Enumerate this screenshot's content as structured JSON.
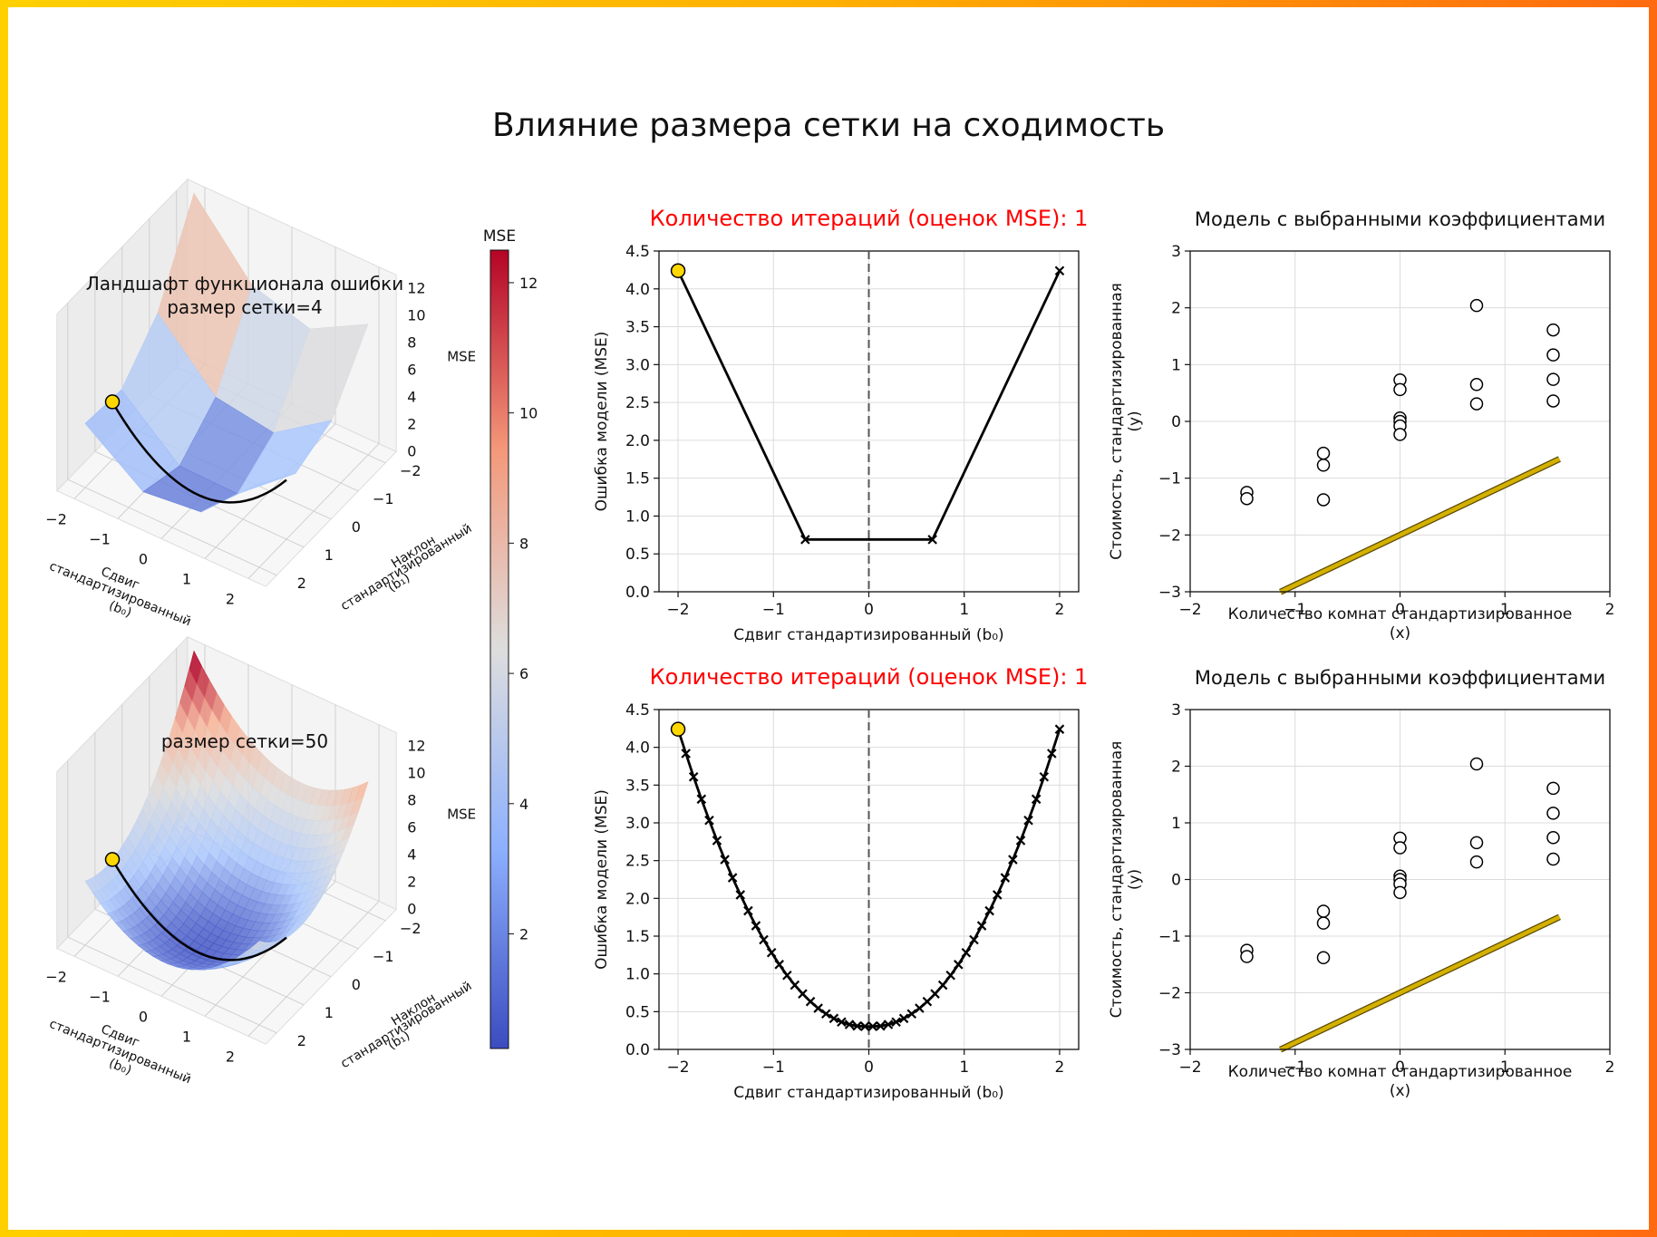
{
  "figure": {
    "title": "Влияние размера сетки на сходимость",
    "frame_colors": [
      "#ffd000",
      "#ffb000",
      "#ff6a10"
    ]
  },
  "colorbar": {
    "label": "MSE",
    "ticks": [
      2,
      4,
      6,
      8,
      10,
      12
    ],
    "range": [
      0.24,
      12.5
    ],
    "cmap": [
      "#3b4cc0",
      "#aac7fd",
      "#dddddd",
      "#f7b396",
      "#b40426"
    ]
  },
  "chart_data": [
    {
      "id": "surface_grid4",
      "type": "surface3d",
      "title": "Ландшафт функционала ошибки\nразмер сетки=4",
      "title_lines": [
        "Ландшафт функционала ошибки",
        "размер сетки=4"
      ],
      "grid_size": 4,
      "xlabel_lines": [
        "Сдвиг",
        "стандартизированный",
        "(b₀)"
      ],
      "ylabel_lines": [
        "Наклон",
        "стандартизированный",
        "(b₁)"
      ],
      "zlabel": "MSE",
      "xticks": [
        "−2",
        "−1",
        "0",
        "1",
        "2"
      ],
      "yticks": [
        "−2",
        "−1",
        "0",
        "1",
        "2"
      ],
      "zticks": [
        "0",
        "2",
        "4",
        "6",
        "8",
        "10",
        "12"
      ],
      "start_point": {
        "b0": -2,
        "b1": 1,
        "mse": 4.24
      },
      "start_color": "#ffd700"
    },
    {
      "id": "surface_grid50",
      "type": "surface3d",
      "title": "размер сетки=50",
      "title_lines": [
        "размер сетки=50"
      ],
      "grid_size": 50,
      "xlabel_lines": [
        "Сдвиг",
        "стандартизированный",
        "(b₀)"
      ],
      "ylabel_lines": [
        "Наклон",
        "стандартизированный",
        "(b₁)"
      ],
      "zlabel": "MSE",
      "xticks": [
        "−2",
        "−1",
        "0",
        "1",
        "2"
      ],
      "yticks": [
        "−2",
        "−1",
        "0",
        "1",
        "2"
      ],
      "zticks": [
        "0",
        "2",
        "4",
        "6",
        "8",
        "10",
        "12"
      ],
      "start_point": {
        "b0": -2,
        "b1": 1,
        "mse": 4.24
      },
      "start_color": "#ffd700"
    },
    {
      "id": "mse_grid4",
      "type": "line",
      "title": "Количество итераций (оценок MSE): 1",
      "title_color": "#ff0000",
      "xlabel": "Сдвиг стандартизированный (b₀)",
      "ylabel": "Ошибка модели (MSE)",
      "xlim": [
        -2.2,
        2.2
      ],
      "ylim": [
        0,
        4.5
      ],
      "xticks": [
        -2,
        -1,
        0,
        1,
        2
      ],
      "xtick_labels": [
        "−2",
        "−1",
        "0",
        "1",
        "2"
      ],
      "yticks": [
        0.0,
        0.5,
        1.0,
        1.5,
        2.0,
        2.5,
        3.0,
        3.5,
        4.0,
        4.5
      ],
      "ytick_labels": [
        "0.0",
        "0.5",
        "1.0",
        "1.5",
        "2.0",
        "2.5",
        "3.0",
        "3.5",
        "4.0",
        "4.5"
      ],
      "x": [
        -2.0,
        -0.6667,
        0.6667,
        2.0
      ],
      "y": [
        4.24,
        0.69,
        0.69,
        4.24
      ],
      "vline_x": 0,
      "start_point": {
        "x": -2.0,
        "y": 4.24
      },
      "start_color": "#ffd700"
    },
    {
      "id": "mse_grid50",
      "type": "line",
      "title": "Количество итераций (оценок MSE): 1",
      "title_color": "#ff0000",
      "xlabel": "Сдвиг стандартизированный (b₀)",
      "ylabel": "Ошибка модели (MSE)",
      "xlim": [
        -2.2,
        2.2
      ],
      "ylim": [
        0,
        4.5
      ],
      "xticks": [
        -2,
        -1,
        0,
        1,
        2
      ],
      "xtick_labels": [
        "−2",
        "−1",
        "0",
        "1",
        "2"
      ],
      "yticks": [
        0.0,
        0.5,
        1.0,
        1.5,
        2.0,
        2.5,
        3.0,
        3.5,
        4.0,
        4.5
      ],
      "ytick_labels": [
        "0.0",
        "0.5",
        "1.0",
        "1.5",
        "2.0",
        "2.5",
        "3.0",
        "3.5",
        "4.0",
        "4.5"
      ],
      "x": [
        -2.0,
        -1.918,
        -1.837,
        -1.755,
        -1.673,
        -1.592,
        -1.51,
        -1.429,
        -1.347,
        -1.265,
        -1.184,
        -1.102,
        -1.02,
        -0.939,
        -0.857,
        -0.776,
        -0.694,
        -0.612,
        -0.531,
        -0.449,
        -0.367,
        -0.286,
        -0.204,
        -0.122,
        -0.041,
        0.041,
        0.122,
        0.204,
        0.286,
        0.367,
        0.449,
        0.531,
        0.612,
        0.694,
        0.776,
        0.857,
        0.939,
        1.02,
        1.102,
        1.184,
        1.265,
        1.347,
        1.429,
        1.51,
        1.592,
        1.673,
        1.755,
        1.837,
        1.918,
        2.0
      ],
      "y": [
        4.24,
        3.918,
        3.609,
        3.314,
        3.033,
        2.766,
        2.513,
        2.273,
        2.047,
        1.835,
        1.637,
        1.452,
        1.281,
        1.124,
        0.981,
        0.851,
        0.736,
        0.634,
        0.545,
        0.471,
        0.41,
        0.363,
        0.33,
        0.31,
        0.305,
        0.305,
        0.31,
        0.33,
        0.363,
        0.41,
        0.471,
        0.545,
        0.634,
        0.736,
        0.851,
        0.981,
        1.124,
        1.281,
        1.452,
        1.637,
        1.835,
        2.047,
        2.273,
        2.513,
        2.766,
        3.033,
        3.314,
        3.609,
        3.918,
        4.24
      ],
      "vline_x": 0,
      "start_point": {
        "x": -2.0,
        "y": 4.24
      },
      "start_color": "#ffd700"
    },
    {
      "id": "model_grid4",
      "type": "scatter",
      "title": "Модель с выбранными коэффициентами",
      "xlabel_lines": [
        "Количество комнат стандартизированное",
        "(x)"
      ],
      "ylabel_lines": [
        "Стоимость, стандартизированная",
        "(y)"
      ],
      "xlim": [
        -2,
        2
      ],
      "ylim": [
        -3,
        3
      ],
      "xticks": [
        -2,
        -1,
        0,
        1,
        2
      ],
      "xtick_labels": [
        "−2",
        "−1",
        "0",
        "1",
        "2"
      ],
      "yticks": [
        -3,
        -2,
        -1,
        0,
        1,
        2,
        3
      ],
      "ytick_labels": [
        "−3",
        "−2",
        "−1",
        "0",
        "1",
        "2",
        "3"
      ],
      "points": [
        [
          -1.46,
          -1.25
        ],
        [
          -1.46,
          -1.36
        ],
        [
          -0.73,
          -0.56
        ],
        [
          -0.73,
          -0.77
        ],
        [
          -0.73,
          -1.38
        ],
        [
          0.0,
          0.73
        ],
        [
          0.0,
          0.56
        ],
        [
          0.0,
          0.06
        ],
        [
          0.0,
          0.0
        ],
        [
          0.0,
          -0.08
        ],
        [
          0.0,
          -0.23
        ],
        [
          0.73,
          2.04
        ],
        [
          0.73,
          0.65
        ],
        [
          0.73,
          0.31
        ],
        [
          1.46,
          1.61
        ],
        [
          1.46,
          1.17
        ],
        [
          1.46,
          0.74
        ],
        [
          1.46,
          0.36
        ]
      ],
      "line": {
        "b0": -2.0,
        "b1": 0.88,
        "x_range": [
          -1.14,
          1.52
        ],
        "color": "#d4b000"
      }
    },
    {
      "id": "model_grid50",
      "type": "scatter",
      "title": "Модель с выбранными коэффициентами",
      "xlabel_lines": [
        "Количество комнат стандартизированное",
        "(x)"
      ],
      "ylabel_lines": [
        "Стоимость, стандартизированная",
        "(y)"
      ],
      "xlim": [
        -2,
        2
      ],
      "ylim": [
        -3,
        3
      ],
      "xticks": [
        -2,
        -1,
        0,
        1,
        2
      ],
      "xtick_labels": [
        "−2",
        "−1",
        "0",
        "1",
        "2"
      ],
      "yticks": [
        -3,
        -2,
        -1,
        0,
        1,
        2,
        3
      ],
      "ytick_labels": [
        "−3",
        "−2",
        "−1",
        "0",
        "1",
        "2",
        "3"
      ],
      "points": [
        [
          -1.46,
          -1.25
        ],
        [
          -1.46,
          -1.36
        ],
        [
          -0.73,
          -0.56
        ],
        [
          -0.73,
          -0.77
        ],
        [
          -0.73,
          -1.38
        ],
        [
          0.0,
          0.73
        ],
        [
          0.0,
          0.56
        ],
        [
          0.0,
          0.06
        ],
        [
          0.0,
          0.0
        ],
        [
          0.0,
          -0.08
        ],
        [
          0.0,
          -0.23
        ],
        [
          0.73,
          2.04
        ],
        [
          0.73,
          0.65
        ],
        [
          0.73,
          0.31
        ],
        [
          1.46,
          1.61
        ],
        [
          1.46,
          1.17
        ],
        [
          1.46,
          0.74
        ],
        [
          1.46,
          0.36
        ]
      ],
      "line": {
        "b0": -2.0,
        "b1": 0.88,
        "x_range": [
          -1.14,
          1.52
        ],
        "color": "#d4b000"
      }
    }
  ]
}
